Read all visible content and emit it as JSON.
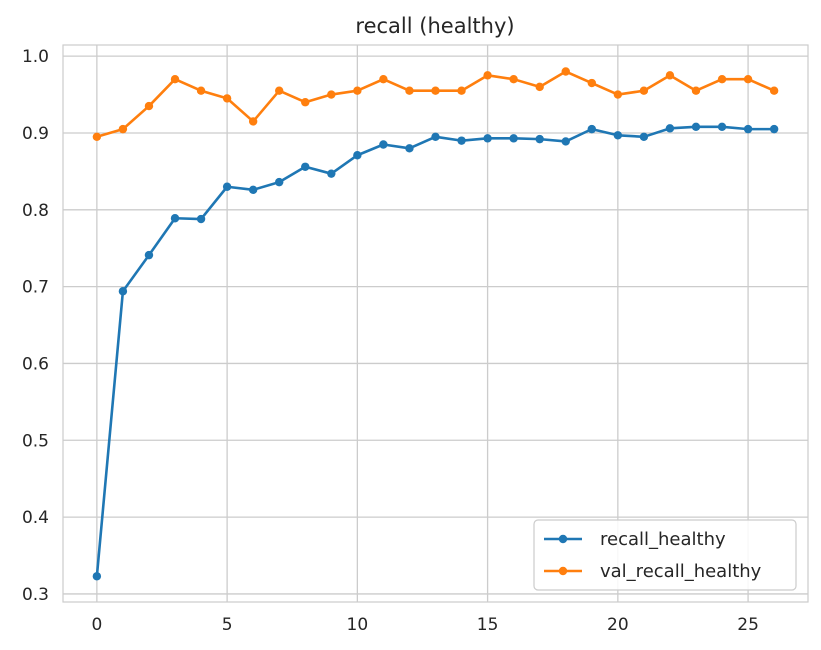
{
  "chart_data": {
    "type": "line",
    "title": "recall (healthy)",
    "xlabel": "",
    "ylabel": "",
    "xlim": [
      -1.3,
      27.3
    ],
    "ylim": [
      0.2895,
      1.0145
    ],
    "xticks": [
      0,
      5,
      10,
      15,
      20,
      25
    ],
    "yticks": [
      0.3,
      0.4,
      0.5,
      0.6,
      0.7,
      0.8,
      0.9,
      1.0
    ],
    "ytick_labels": [
      "0.3",
      "0.4",
      "0.5",
      "0.6",
      "0.7",
      "0.8",
      "0.9",
      "1.0"
    ],
    "grid": true,
    "legend_position": "lower-right",
    "x": [
      0,
      1,
      2,
      3,
      4,
      5,
      6,
      7,
      8,
      9,
      10,
      11,
      12,
      13,
      14,
      15,
      16,
      17,
      18,
      19,
      20,
      21,
      22,
      23,
      24,
      25,
      26
    ],
    "series": [
      {
        "name": "recall_healthy",
        "color": "#1f77b4",
        "marker": "circle",
        "values": [
          0.323,
          0.694,
          0.741,
          0.789,
          0.788,
          0.83,
          0.826,
          0.836,
          0.856,
          0.847,
          0.871,
          0.885,
          0.88,
          0.895,
          0.89,
          0.893,
          0.893,
          0.892,
          0.889,
          0.905,
          0.897,
          0.895,
          0.906,
          0.908,
          0.908,
          0.905,
          0.905
        ]
      },
      {
        "name": "val_recall_healthy",
        "color": "#ff7f0e",
        "marker": "circle",
        "values": [
          0.895,
          0.905,
          0.935,
          0.97,
          0.955,
          0.945,
          0.915,
          0.955,
          0.94,
          0.95,
          0.955,
          0.97,
          0.955,
          0.955,
          0.955,
          0.975,
          0.97,
          0.96,
          0.98,
          0.965,
          0.95,
          0.955,
          0.975,
          0.955,
          0.97,
          0.97,
          0.955
        ]
      }
    ]
  },
  "colors": {
    "grid": "#cccccc",
    "axis": "#cccccc",
    "text": "#262626",
    "background": "#ffffff"
  }
}
